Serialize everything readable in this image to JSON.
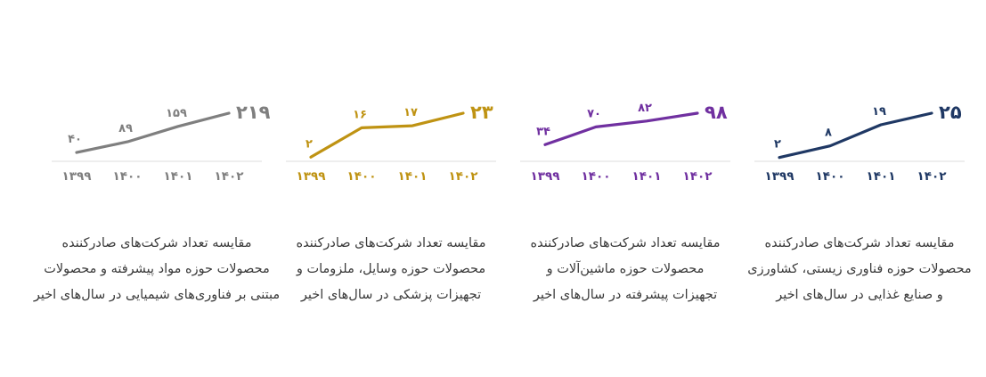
{
  "page": {
    "background_color": "#ffffff",
    "caption_text_color": "#3a3a3a",
    "axis_line_color": "#e3e3e3",
    "language": "fa",
    "direction": "rtl"
  },
  "chart_data": [
    {
      "type": "line",
      "name": "advanced-materials-chemical-exporters",
      "color": "#7f7f7f",
      "x_tick_labels": [
        "۱۳۹۹",
        "۱۴۰۰",
        "۱۴۰۱",
        "۱۴۰۲"
      ],
      "x_values": [
        1399,
        1400,
        1401,
        1402
      ],
      "values": [
        40,
        89,
        159,
        219
      ],
      "value_labels": [
        "۴۰",
        "۸۹",
        "۱۵۹",
        "۲۱۹"
      ],
      "ylim": [
        0,
        219
      ],
      "grid": false,
      "legend": false,
      "caption": "مقایسه تعداد شرکت‌های صادرکننده محصولات حوزه مواد پیشرفته و محصولات مبتنی بر فناوری‌های شیمیایی در سال‌های اخیر",
      "caption_lines": [
        "مقایسه تعداد شرکت‌های صادرکننده",
        "محصولات حوزه مواد پیشرفته و محصولات",
        "مبتنی بر فناوری‌های شیمیایی در سال‌های اخیر"
      ]
    },
    {
      "type": "line",
      "name": "medical-devices-exporters",
      "color": "#bf9313",
      "x_tick_labels": [
        "۱۳۹۹",
        "۱۴۰۰",
        "۱۴۰۱",
        "۱۴۰۲"
      ],
      "x_values": [
        1399,
        1400,
        1401,
        1402
      ],
      "values": [
        2,
        16,
        17,
        23
      ],
      "value_labels": [
        "۲",
        "۱۶",
        "۱۷",
        "۲۳"
      ],
      "ylim": [
        0,
        23
      ],
      "grid": false,
      "legend": false,
      "caption": "مقایسه تعداد شرکت‌های صادرکننده محصولات حوزه وسایل، ملزومات و تجهیزات پزشکی در سال‌های اخیر",
      "caption_lines": [
        "مقایسه تعداد شرکت‌های صادرکننده",
        "محصولات حوزه وسایل، ملزومات و",
        "تجهیزات پزشکی در سال‌های اخیر"
      ]
    },
    {
      "type": "line",
      "name": "advanced-machinery-exporters",
      "color": "#7030a0",
      "x_tick_labels": [
        "۱۳۹۹",
        "۱۴۰۰",
        "۱۴۰۱",
        "۱۴۰۲"
      ],
      "x_values": [
        1399,
        1400,
        1401,
        1402
      ],
      "values": [
        34,
        70,
        82,
        98
      ],
      "value_labels": [
        "۳۴",
        "۷۰",
        "۸۲",
        "۹۸"
      ],
      "ylim": [
        0,
        98
      ],
      "grid": false,
      "legend": false,
      "caption": "مقایسه تعداد شرکت‌های صادرکننده محصولات حوزه ماشین‌آلات و تجهیزات پیشرفته در سال‌های اخیر",
      "caption_lines": [
        "مقایسه تعداد شرکت‌های صادرکننده",
        "محصولات حوزه ماشین‌آلات و",
        "تجهیزات پیشرفته در سال‌های اخیر"
      ]
    },
    {
      "type": "line",
      "name": "biotech-agriculture-food-exporters",
      "color": "#1f3864",
      "x_tick_labels": [
        "۱۳۹۹",
        "۱۴۰۰",
        "۱۴۰۱",
        "۱۴۰۲"
      ],
      "x_values": [
        1399,
        1400,
        1401,
        1402
      ],
      "values": [
        2,
        8,
        19,
        25
      ],
      "value_labels": [
        "۲",
        "۸",
        "۱۹",
        "۲۵"
      ],
      "ylim": [
        0,
        25
      ],
      "grid": false,
      "legend": false,
      "caption": "مقایسه تعداد شرکت‌های صادرکننده محصولات حوزه فناوری زیستی، کشاورزی و صنایع غذایی در سال‌های اخیر",
      "caption_lines": [
        "مقایسه تعداد شرکت‌های صادرکننده",
        "محصولات حوزه فناوری زیستی، کشاورزی",
        "و صنایع غذایی در سال‌های اخیر"
      ]
    }
  ]
}
